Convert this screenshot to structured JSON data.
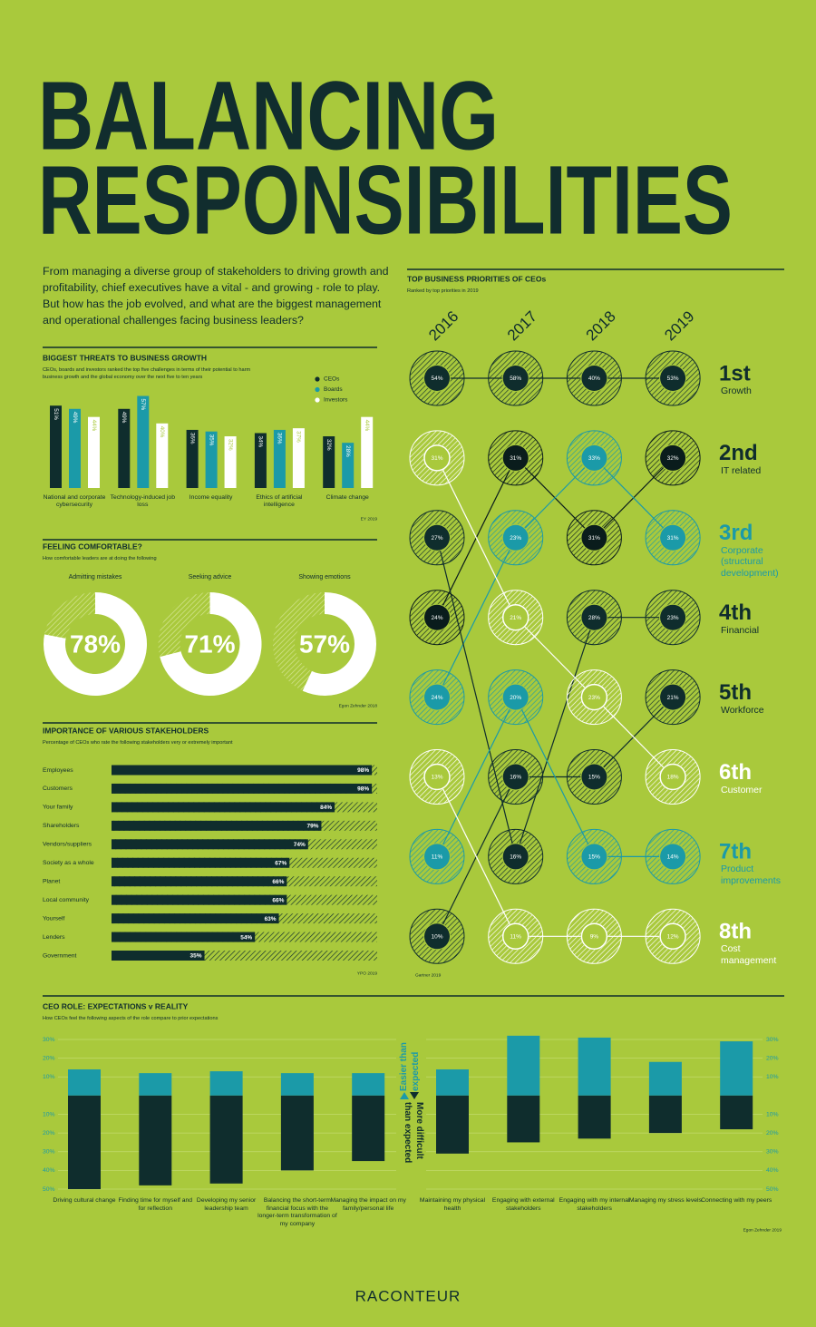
{
  "title_lines": [
    "BALANCING",
    "RESPONSIBILITIES"
  ],
  "intro": "From managing a diverse group of stakeholders to driving growth and profitability, chief executives have a vital - and growing - role to play. But how has the job evolved, and what are the biggest management and operational challenges facing business leaders?",
  "brand": "RACONTEUR",
  "chart_data": [
    {
      "type": "bar",
      "title": "BIGGEST THREATS TO BUSINESS GROWTH",
      "subtitle": "CEOs, boards and investors ranked the top five challenges in terms of their potential to harm business growth and the global economy over the next five to ten years",
      "source": "EY 2019",
      "categories": [
        "National and corporate cybersecurity",
        "Technology-induced job loss",
        "Income equality",
        "Ethics of artificial intelligence",
        "Climate change"
      ],
      "series": [
        {
          "name": "CEOs",
          "color": "#0f2d2d",
          "values": [
            51,
            49,
            36,
            34,
            32
          ],
          "value_labels": [
            "51%",
            "49%",
            "36%",
            "34%",
            "32%"
          ]
        },
        {
          "name": "Boards",
          "color": "#1b9aa8",
          "values": [
            49,
            57,
            35,
            36,
            28
          ],
          "value_labels": [
            "49%",
            "57%",
            "35%",
            "36%",
            "28%"
          ]
        },
        {
          "name": "Investors",
          "color": "#ffffff",
          "values": [
            44,
            40,
            32,
            37,
            44
          ],
          "value_labels": [
            "44%",
            "40%",
            "32%",
            "37%",
            "44%"
          ]
        }
      ]
    },
    {
      "type": "donut",
      "title": "FEELING COMFORTABLE?",
      "subtitle": "How comfortable leaders are at doing the following",
      "source": "Egon Zehnder 2018",
      "categories": [
        "Admitting mistakes",
        "Seeking advice",
        "Showing emotions"
      ],
      "values": [
        78,
        71,
        57
      ],
      "value_labels": [
        "78%",
        "71%",
        "57%"
      ],
      "color": "#ffffff"
    },
    {
      "type": "hbar",
      "title": "IMPORTANCE OF VARIOUS STAKEHOLDERS",
      "subtitle": "Percentage of CEOs who rate the following stakeholders very or extremely important",
      "source": "YPO 2019",
      "categories": [
        "Employees",
        "Customers",
        "Your family",
        "Shareholders",
        "Vendors/suppliers",
        "Society as a whole",
        "Planet",
        "Local community",
        "Yourself",
        "Lenders",
        "Government"
      ],
      "values": [
        98,
        98,
        84,
        79,
        74,
        67,
        66,
        66,
        63,
        54,
        35
      ],
      "value_labels": [
        "98%",
        "98%",
        "84%",
        "79%",
        "74%",
        "67%",
        "66%",
        "66%",
        "63%",
        "54%",
        "35%"
      ],
      "xlim": [
        0,
        100
      ],
      "color": "#0f2d2d"
    },
    {
      "type": "bump",
      "title": "TOP BUSINESS PRIORITIES OF CEOs",
      "subtitle": "Ranked by top priorities in 2019",
      "source": "Gartner 2019",
      "x": [
        "2016",
        "2017",
        "2018",
        "2019"
      ],
      "series": [
        {
          "name": "Growth",
          "rank_label": "1st",
          "color": "#0f2d2d",
          "ranks": [
            1,
            1,
            1,
            1
          ],
          "values": [
            54,
            58,
            40,
            53
          ],
          "value_labels": [
            "54%",
            "58%",
            "40%",
            "53%"
          ]
        },
        {
          "name": "IT related",
          "rank_label": "2nd",
          "color": "#0a1c1c",
          "ranks": [
            4,
            2,
            3,
            2
          ],
          "values": [
            24,
            31,
            31,
            32
          ],
          "value_labels": [
            "24%",
            "31%",
            "31%",
            "32%"
          ]
        },
        {
          "name": "Corporate (structural development)",
          "rank_label": "3rd",
          "color": "#1b9aa8",
          "ranks": [
            5,
            3,
            2,
            3
          ],
          "values": [
            24,
            23,
            33,
            31
          ],
          "value_labels": [
            "24%",
            "23%",
            "33%",
            "31%"
          ]
        },
        {
          "name": "Financial",
          "rank_label": "4th",
          "color": "#0f2d2d",
          "ranks": [
            3,
            7,
            4,
            4
          ],
          "values": [
            27,
            16,
            28,
            23
          ],
          "value_labels": [
            "27%",
            "16%",
            "28%",
            "23%"
          ]
        },
        {
          "name": "Workforce",
          "rank_label": "5th",
          "color": "#0f2d2d",
          "ranks": [
            8,
            6,
            6,
            5
          ],
          "values": [
            10,
            16,
            15,
            21
          ],
          "value_labels": [
            "10%",
            "16%",
            "15%",
            "21%"
          ]
        },
        {
          "name": "Customer",
          "rank_label": "6th",
          "color": "#ffffff",
          "ranks": [
            2,
            4,
            5,
            6
          ],
          "values": [
            31,
            21,
            23,
            18
          ],
          "value_labels": [
            "31%",
            "21%",
            "23%",
            "18%"
          ]
        },
        {
          "name": "Product improvements",
          "rank_label": "7th",
          "color": "#1b9aa8",
          "ranks": [
            7,
            5,
            7,
            7
          ],
          "values": [
            11,
            20,
            15,
            14
          ],
          "value_labels": [
            "11%",
            "20%",
            "15%",
            "14%"
          ]
        },
        {
          "name": "Cost management",
          "rank_label": "8th",
          "color": "#ffffff",
          "ranks": [
            6,
            8,
            8,
            8
          ],
          "values": [
            13,
            11,
            9,
            12
          ],
          "value_labels": [
            "13%",
            "11%",
            "9%",
            "12%"
          ]
        }
      ]
    },
    {
      "type": "diverging_bar",
      "title": "CEO ROLE: EXPECTATIONS v REALITY",
      "subtitle": "How CEOs feel the following aspects of the role compare to prior expectations",
      "source": "Egon Zehnder 2019",
      "categories": [
        "Driving cultural change",
        "Finding time for myself and for reflection",
        "Developing my senior leadership team",
        "Balancing the short-term financial focus with the longer-term transformation of my company",
        "Managing the impact on my family/personal life",
        "Maintaining my physical health",
        "Engaging with external stakeholders",
        "Engaging with my internal stakeholders",
        "Managing my stress levels",
        "Connecting with my peers"
      ],
      "series": [
        {
          "name": "Easier than expected",
          "color": "#1b9aa8",
          "values": [
            14,
            12,
            13,
            12,
            12,
            14,
            32,
            31,
            18,
            29
          ]
        },
        {
          "name": "More difficult than expected",
          "color": "#0f2d2d",
          "values": [
            -50,
            -48,
            -47,
            -40,
            -35,
            -31,
            -25,
            -23,
            -20,
            -18
          ]
        }
      ],
      "ylim": [
        -50,
        30
      ],
      "yticks": [
        {
          "value": 30,
          "label": "30%"
        },
        {
          "value": 20,
          "label": "20%"
        },
        {
          "value": 10,
          "label": "10%"
        },
        {
          "value": -10,
          "label": "10%"
        },
        {
          "value": -20,
          "label": "20%"
        },
        {
          "value": -30,
          "label": "30%"
        },
        {
          "value": -40,
          "label": "40%"
        },
        {
          "value": -50,
          "label": "50%"
        }
      ],
      "grid": true
    }
  ]
}
